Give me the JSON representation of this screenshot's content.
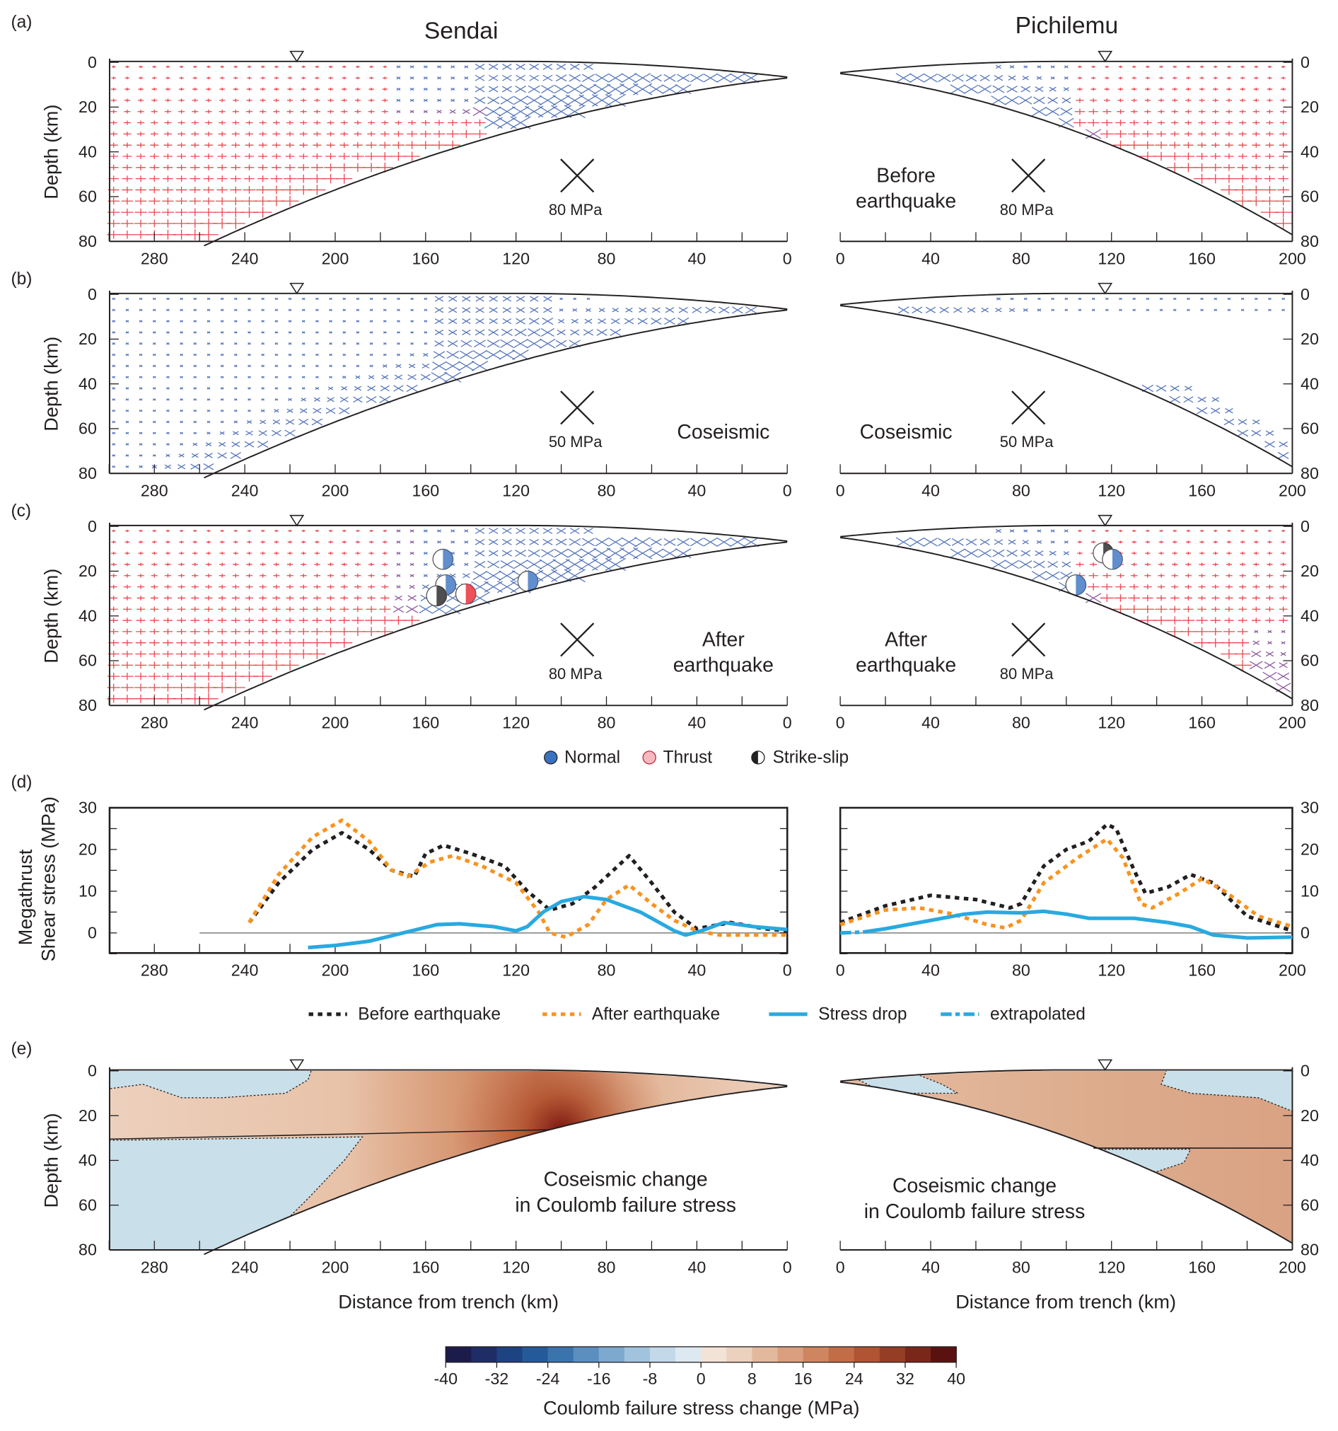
{
  "titles": {
    "left": "Sendai",
    "right": "Pichilemu"
  },
  "panel_labels": [
    "(a)",
    "(b)",
    "(c)",
    "(d)",
    "(e)"
  ],
  "depth_label": "Depth (km)",
  "depth_ticks": [
    "0",
    "20",
    "40",
    "60",
    "80"
  ],
  "sendai_x_ticks": [
    "280",
    "240",
    "200",
    "160",
    "120",
    "80",
    "40",
    "0"
  ],
  "pichilemu_x_ticks": [
    "0",
    "40",
    "80",
    "120",
    "160",
    "200"
  ],
  "panel_a": {
    "scale_left": "80 MPa",
    "scale_right": "80 MPa",
    "annotation_right_1": "Before",
    "annotation_right_2": "earthquake"
  },
  "panel_b": {
    "scale_left": "50 MPa",
    "scale_right": "50 MPa",
    "annotation_left": "Coseismic",
    "annotation_right": "Coseismic"
  },
  "panel_c": {
    "scale_left": "80 MPa",
    "scale_right": "80 MPa",
    "annotation_left_1": "After",
    "annotation_left_2": "earthquake",
    "annotation_right_1": "After",
    "annotation_right_2": "earthquake"
  },
  "mechanism_legend": {
    "normal": "Normal",
    "thrust": "Thrust",
    "strike_slip": "Strike-slip"
  },
  "panel_e": {
    "annotation_1": "Coseismic change",
    "annotation_2": "in Coulomb failure stress",
    "xlabel": "Distance from trench (km)"
  },
  "colors": {
    "thrust": "#e8262f",
    "normal": "#3a5fb0",
    "mixed": "#7a3d8f",
    "before": "#231f20",
    "after": "#f7931e",
    "stress_drop": "#29a9e0",
    "zero_line": "#9a9a9a",
    "coulomb_negative": "#c9e0ea"
  },
  "chart_data": [
    {
      "type": "line",
      "panel": "(d) Sendai",
      "ylabel": "Megathrust Shear stress (MPa)",
      "xlim": [
        300,
        0
      ],
      "ylim": [
        -5,
        30
      ],
      "x_ticks": [
        280,
        240,
        200,
        160,
        120,
        80,
        40,
        0
      ],
      "y_ticks": [
        0,
        10,
        20,
        30
      ],
      "series": [
        {
          "name": "Before earthquake",
          "style": "dotted",
          "color": "#231f20",
          "x": [
            238,
            225,
            210,
            197,
            185,
            175,
            165,
            160,
            152,
            140,
            125,
            115,
            105,
            95,
            85,
            70,
            60,
            50,
            40,
            25,
            10,
            0
          ],
          "y": [
            2.5,
            12,
            20,
            24,
            20,
            15,
            13.5,
            19,
            21,
            19,
            16,
            10,
            5.5,
            7,
            11,
            18.5,
            12,
            5,
            1,
            2.5,
            1,
            0.5
          ]
        },
        {
          "name": "After earthquake",
          "style": "dotted",
          "color": "#f7931e",
          "x": [
            238,
            225,
            210,
            197,
            185,
            175,
            168,
            158,
            148,
            135,
            120,
            110,
            105,
            98,
            88,
            80,
            70,
            60,
            50,
            40,
            30,
            10,
            0
          ],
          "y": [
            2.5,
            14,
            23,
            27,
            22,
            15,
            13.5,
            17,
            18.5,
            16,
            12,
            5,
            0,
            -1,
            2,
            8,
            11.5,
            7,
            3,
            0.5,
            -0.5,
            -0.5,
            -0.5
          ]
        },
        {
          "name": "Stress drop",
          "style": "solid",
          "color": "#29a9e0",
          "x": [
            212,
            200,
            185,
            170,
            155,
            145,
            130,
            120,
            115,
            108,
            100,
            90,
            80,
            65,
            50,
            45,
            38,
            28,
            15,
            0
          ],
          "y": [
            -3.5,
            -3,
            -2,
            0,
            2,
            2.2,
            1.5,
            0.5,
            1.5,
            5,
            7.5,
            8.7,
            8,
            5,
            0.5,
            -0.5,
            0.5,
            2.5,
            1.5,
            0.8
          ]
        }
      ]
    },
    {
      "type": "line",
      "panel": "(d) Pichilemu",
      "xlim": [
        0,
        200
      ],
      "ylim": [
        -5,
        30
      ],
      "x_ticks": [
        0,
        40,
        80,
        120,
        160,
        200
      ],
      "y_ticks": [
        0,
        10,
        20,
        30
      ],
      "series": [
        {
          "name": "Before earthquake",
          "style": "dotted",
          "color": "#231f20",
          "x": [
            0,
            20,
            40,
            60,
            75,
            80,
            90,
            100,
            110,
            118,
            122,
            130,
            135,
            145,
            155,
            165,
            180,
            200
          ],
          "y": [
            2.5,
            6.5,
            9,
            8,
            6,
            7,
            16,
            20,
            22,
            26,
            25,
            15,
            9.5,
            11,
            14,
            12,
            4,
            0.5
          ]
        },
        {
          "name": "After earthquake",
          "style": "dotted",
          "color": "#f7931e",
          "x": [
            0,
            20,
            35,
            50,
            65,
            73,
            80,
            90,
            105,
            118,
            125,
            133,
            138,
            150,
            160,
            170,
            185,
            200
          ],
          "y": [
            2,
            5.5,
            6,
            4.5,
            2,
            1.2,
            3,
            12,
            18,
            22.5,
            18,
            7,
            6,
            9.5,
            13,
            10,
            4,
            1.5
          ]
        },
        {
          "name": "Stress drop",
          "style": "solid",
          "color": "#29a9e0",
          "x": [
            10,
            20,
            40,
            55,
            65,
            80,
            90,
            100,
            110,
            130,
            145,
            155,
            165,
            180,
            200
          ],
          "y": [
            0.2,
            1,
            3,
            4.5,
            5,
            4.8,
            5.2,
            4.5,
            3.5,
            3.5,
            2.5,
            1.5,
            -0.5,
            -1.2,
            -1
          ]
        },
        {
          "name": "extrapolated",
          "style": "dashed",
          "color": "#29a9e0",
          "x": [
            0,
            10
          ],
          "y": [
            0,
            0.2
          ]
        }
      ]
    },
    {
      "type": "heatmap",
      "panel": "colorbar",
      "label": "Coulomb failure stress change (MPa)",
      "range": [
        -40,
        40
      ],
      "tick_labels": [
        "-40",
        "-32",
        "-24",
        "-16",
        "-8",
        "0",
        "8",
        "16",
        "24",
        "32",
        "40"
      ]
    }
  ],
  "legend": {
    "before": "Before earthquake",
    "after": "After earthquake",
    "stress_drop": "Stress drop",
    "extrapolated": "extrapolated"
  }
}
